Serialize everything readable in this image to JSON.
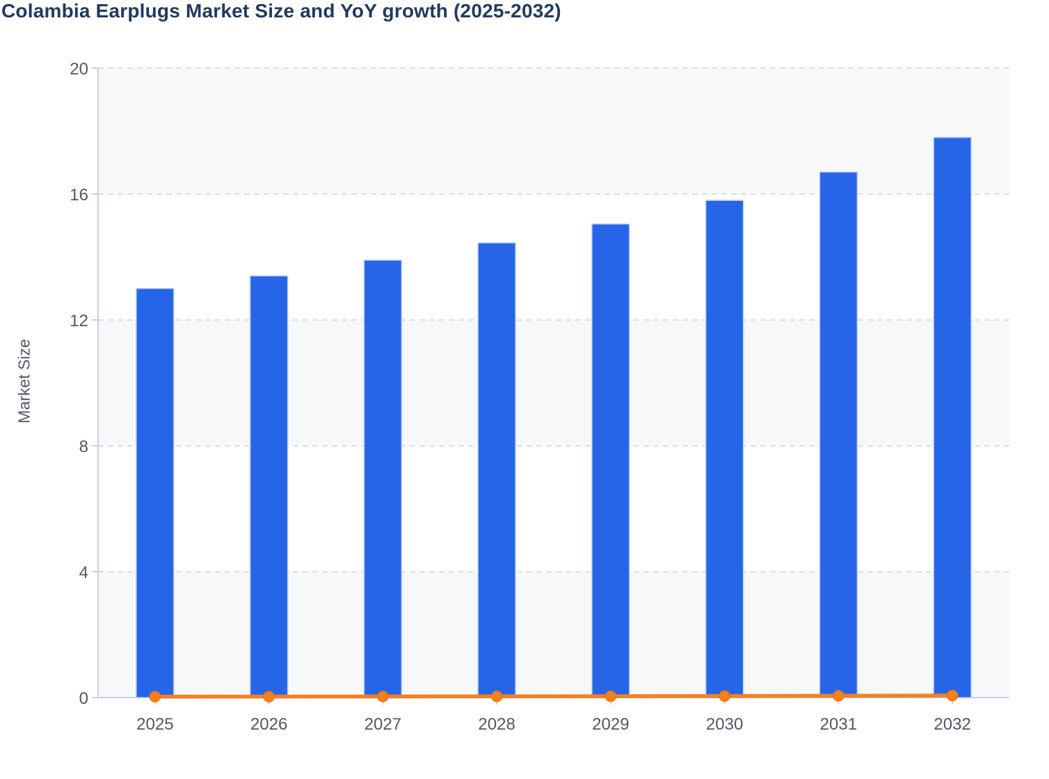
{
  "chart_data": {
    "type": "bar",
    "title": "Colambia Earplugs Market Size and YoY growth (2025-2032)",
    "ylabel": "Market Size",
    "xlabel": "",
    "categories": [
      "2025",
      "2026",
      "2027",
      "2028",
      "2029",
      "2030",
      "2031",
      "2032"
    ],
    "series": [
      {
        "name": "Market Size",
        "type": "bar",
        "color": "#2765e8",
        "values": [
          13.0,
          13.4,
          13.9,
          14.45,
          15.05,
          15.8,
          16.7,
          17.8
        ]
      },
      {
        "name": "YoY growth",
        "type": "line",
        "color": "#f5811d",
        "values": [
          0.03,
          0.033,
          0.037,
          0.04,
          0.043,
          0.05,
          0.057,
          0.066
        ]
      }
    ],
    "ylim": [
      0,
      20
    ],
    "yticks": [
      0,
      4,
      8,
      12,
      16,
      20
    ],
    "grid": true,
    "grid_style": "dashed",
    "legend_position": "none",
    "plot_background": "alternating horizontal bands",
    "colors": {
      "bar": "#2765e8",
      "bar_stroke": "#bdd2f8",
      "line": "#f5811d",
      "line_marker_stroke": "#ee750e",
      "band": "#f6f8fa",
      "axis": "#c5cfe4",
      "gridline": "#d9dde3",
      "tick_label": "#4e5866",
      "title": "#1f3a5e",
      "axis_title": "#4f5a68"
    }
  }
}
